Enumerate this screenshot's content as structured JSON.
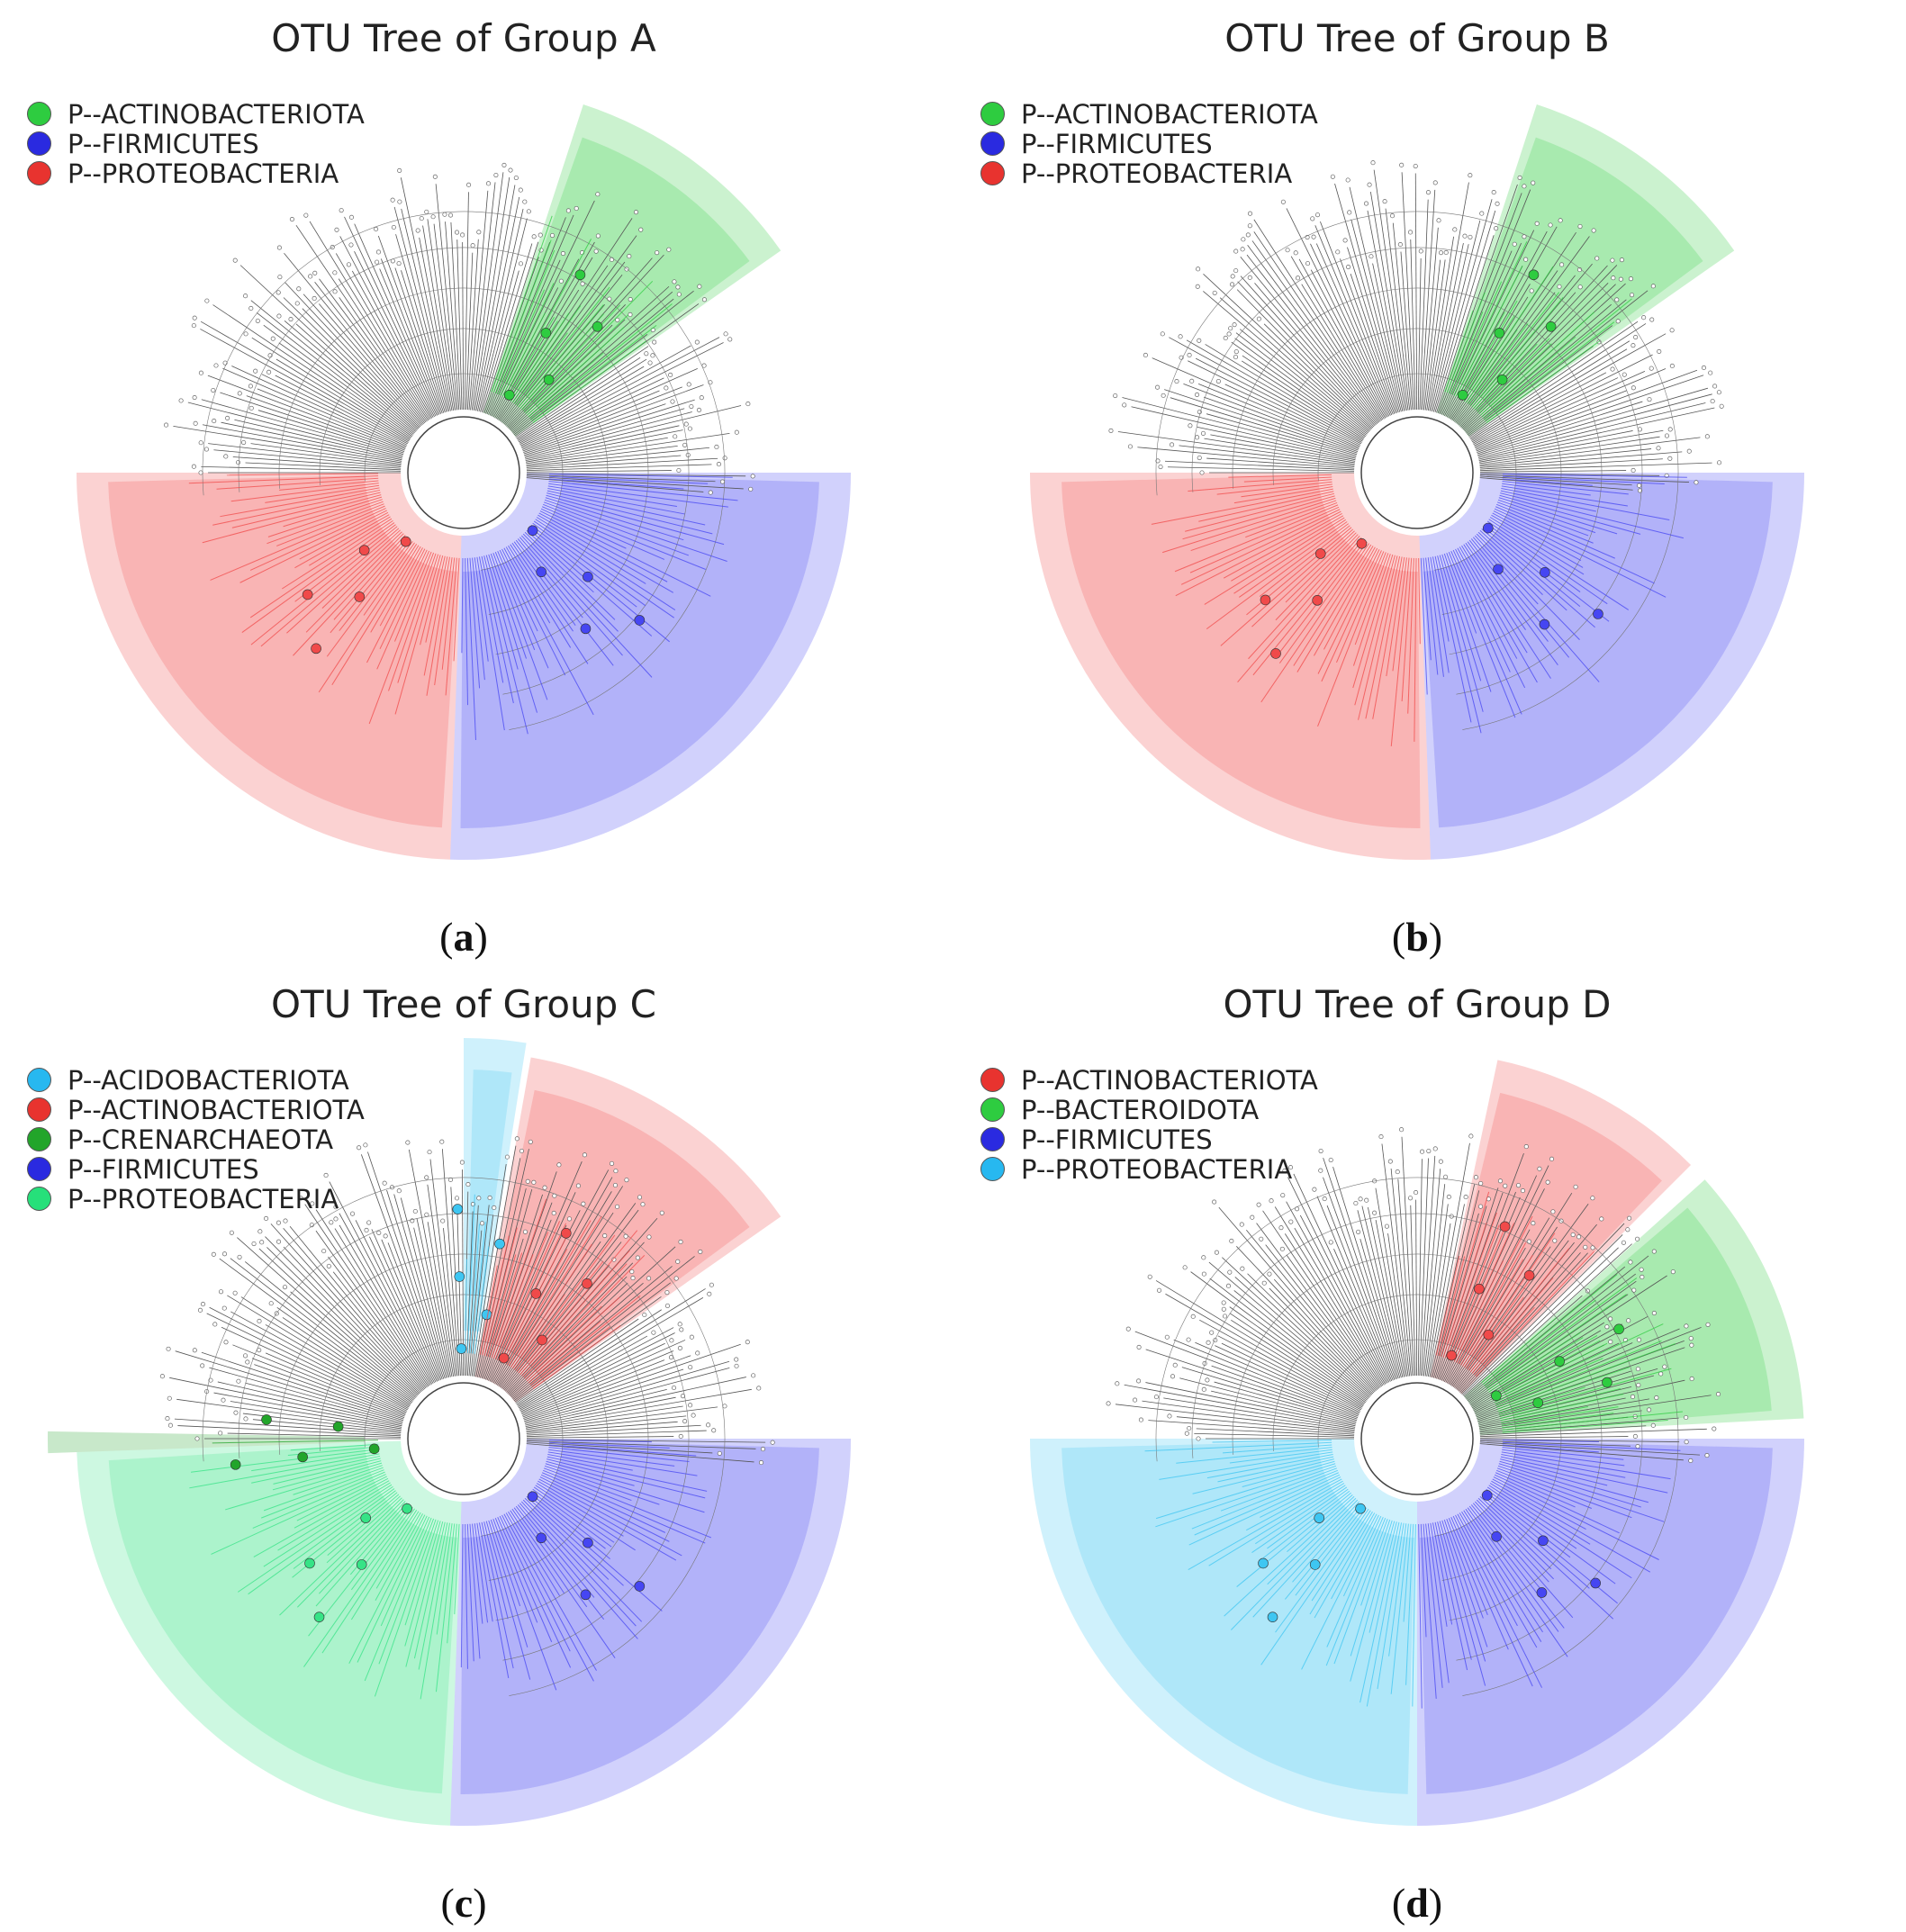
{
  "panels": [
    {
      "id": "a",
      "title": "OTU Tree of Group A",
      "caption_letter": "a",
      "legend": [
        {
          "label": "P--ACTINOBACTERIOTA",
          "color": "#2ecc40"
        },
        {
          "label": "P--FIRMICUTES",
          "color": "#2a2ae0"
        },
        {
          "label": "P--PROTEOBACTERIA",
          "color": "#e8332f"
        }
      ],
      "clades": [
        {
          "name": "p-Actinobacteriota",
          "color": "#2ecc40",
          "from": 18,
          "to": 55
        },
        {
          "name": "p-Firmicutes",
          "color": "#4646f2",
          "from": 90,
          "to": 182
        },
        {
          "name": "p-Proteobacteria",
          "color": "#f04a4a",
          "from": 182,
          "to": 270
        }
      ]
    },
    {
      "id": "b",
      "title": "OTU Tree of Group B",
      "caption_letter": "b",
      "legend": [
        {
          "label": "P--ACTINOBACTERIOTA",
          "color": "#2ecc40"
        },
        {
          "label": "P--FIRMICUTES",
          "color": "#2a2ae0"
        },
        {
          "label": "P--PROTEOBACTERIA",
          "color": "#e8332f"
        }
      ],
      "clades": [
        {
          "name": "p-Actinobacteriota",
          "color": "#2ecc40",
          "from": 18,
          "to": 55
        },
        {
          "name": "p-Firmicutes",
          "color": "#4646f2",
          "from": 90,
          "to": 178
        },
        {
          "name": "p-Proteobacteria",
          "color": "#f04a4a",
          "from": 178,
          "to": 270
        }
      ]
    },
    {
      "id": "c",
      "title": "OTU Tree of Group C",
      "caption_letter": "c",
      "legend": [
        {
          "label": "P--ACIDOBACTERIOTA",
          "color": "#27b8f0"
        },
        {
          "label": "P--ACTINOBACTERIOTA",
          "color": "#e8332f"
        },
        {
          "label": "P--CRENARCHAEOTA",
          "color": "#22a52a"
        },
        {
          "label": "P--FIRMICUTES",
          "color": "#2a2ae0"
        },
        {
          "label": "P--PROTEOBACTERIA",
          "color": "#26e07a"
        }
      ],
      "clades": [
        {
          "name": "p-Acidobacteriota",
          "color": "#3ec6f2",
          "from": 0,
          "to": 9
        },
        {
          "name": "p-Actinobacteriota",
          "color": "#f04a4a",
          "from": 10,
          "to": 55
        },
        {
          "name": "p-Firmicutes",
          "color": "#4646f2",
          "from": 90,
          "to": 182
        },
        {
          "name": "p-Proteobacteria",
          "color": "#36e386",
          "from": 182,
          "to": 268
        },
        {
          "name": "p-Crenarchaeota",
          "color": "#22a52a",
          "from": 268,
          "to": 271
        }
      ]
    },
    {
      "id": "d",
      "title": "OTU Tree of Group D",
      "caption_letter": "d",
      "legend": [
        {
          "label": "P--ACTINOBACTERIOTA",
          "color": "#e8332f"
        },
        {
          "label": "P--BACTEROIDOTA",
          "color": "#2ecc40"
        },
        {
          "label": "P--FIRMICUTES",
          "color": "#2a2ae0"
        },
        {
          "label": "P--PROTEOBACTERIA",
          "color": "#27b8f0"
        }
      ],
      "clades": [
        {
          "name": "p-Actinobacteriota",
          "color": "#f04a4a",
          "from": 12,
          "to": 45
        },
        {
          "name": "p-Bacteroidota",
          "color": "#2ecc40",
          "from": 48,
          "to": 87
        },
        {
          "name": "p-Firmicutes",
          "color": "#4646f2",
          "from": 90,
          "to": 180
        },
        {
          "name": "p-Proteobacteria",
          "color": "#3ec6f2",
          "from": 180,
          "to": 270
        }
      ]
    }
  ]
}
